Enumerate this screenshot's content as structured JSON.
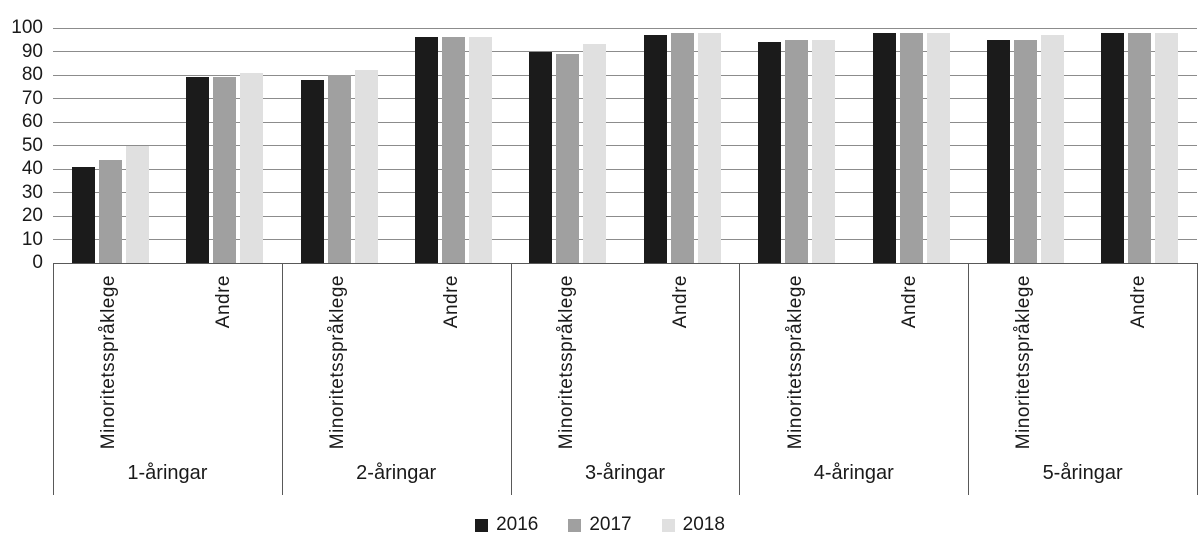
{
  "chart_data": {
    "type": "bar",
    "title": "",
    "xlabel": "",
    "ylabel": "",
    "ylim": [
      0,
      100
    ],
    "y_ticks": [
      0,
      10,
      20,
      30,
      40,
      50,
      60,
      70,
      80,
      90,
      100
    ],
    "grid": "horizontal",
    "legend_position": "bottom",
    "categories": [
      "1-åringar",
      "2-åringar",
      "3-åringar",
      "4-åringar",
      "5-åringar"
    ],
    "subcategories": [
      "Minoritetsspråklege",
      "Andre"
    ],
    "series": [
      {
        "name": "2016",
        "color": "#1b1b1b",
        "values": [
          41,
          79,
          78,
          96,
          90,
          97,
          94,
          98,
          95,
          98
        ]
      },
      {
        "name": "2017",
        "color": "#a0a0a0",
        "values": [
          44,
          79,
          80,
          96,
          89,
          98,
          95,
          98,
          95,
          98
        ]
      },
      {
        "name": "2018",
        "color": "#e0e0e0",
        "values": [
          50,
          81,
          82,
          96,
          93,
          98,
          95,
          98,
          97,
          98
        ]
      }
    ],
    "value_order_note": "values are ordered per category: [cat1-Minoritetsspråklege, cat1-Andre, cat2-Minoritetsspråklege, cat2-Andre, ...]"
  }
}
